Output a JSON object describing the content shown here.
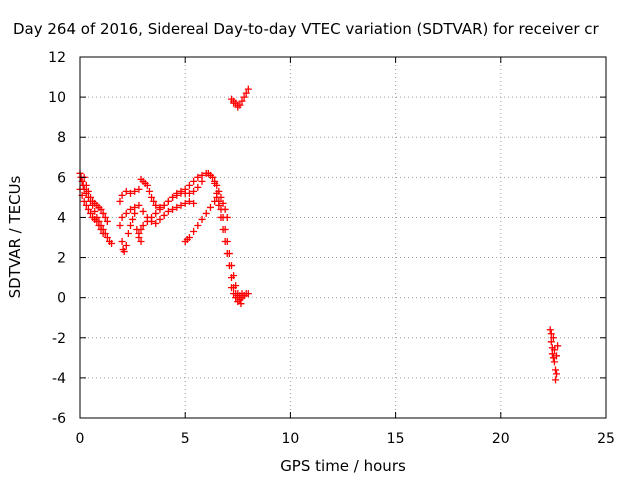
{
  "chart_data": {
    "type": "scatter",
    "title": "Day 264 of 2016, Sidereal Day-to-day VTEC variation (SDTVAR) for receiver cr",
    "xlabel": "GPS time / hours",
    "ylabel": "SDTVAR / TECUs",
    "xlim": [
      0,
      25
    ],
    "ylim": [
      -6,
      12
    ],
    "xticks": [
      0,
      5,
      10,
      15,
      20,
      25
    ],
    "yticks": [
      -6,
      -4,
      -2,
      0,
      2,
      4,
      6,
      8,
      10,
      12
    ],
    "grid": true,
    "marker": "plus",
    "color": "#ff0000",
    "series": [
      {
        "points": [
          [
            0.0,
            6.2
          ],
          [
            0.05,
            6.0
          ],
          [
            0.1,
            5.8
          ],
          [
            0.15,
            5.6
          ],
          [
            0.2,
            5.4
          ],
          [
            0.3,
            5.2
          ],
          [
            0.4,
            5.0
          ],
          [
            0.5,
            4.8
          ],
          [
            0.6,
            4.6
          ],
          [
            0.7,
            4.3
          ],
          [
            0.8,
            4.0
          ],
          [
            0.9,
            3.8
          ],
          [
            1.0,
            3.6
          ],
          [
            1.1,
            3.4
          ],
          [
            1.2,
            3.2
          ],
          [
            1.3,
            3.0
          ],
          [
            1.4,
            2.8
          ],
          [
            1.5,
            2.7
          ],
          [
            0.0,
            5.4
          ],
          [
            0.1,
            5.1
          ],
          [
            0.2,
            4.8
          ],
          [
            0.3,
            4.6
          ],
          [
            0.4,
            4.4
          ],
          [
            0.5,
            4.2
          ],
          [
            0.6,
            4.0
          ],
          [
            0.7,
            3.9
          ],
          [
            0.8,
            3.8
          ],
          [
            0.9,
            3.6
          ],
          [
            1.0,
            3.4
          ],
          [
            1.1,
            3.2
          ],
          [
            0.2,
            6.0
          ],
          [
            0.3,
            5.6
          ],
          [
            0.4,
            5.3
          ],
          [
            0.5,
            5.0
          ],
          [
            0.6,
            4.8
          ],
          [
            0.7,
            4.7
          ],
          [
            0.8,
            4.6
          ],
          [
            0.9,
            4.5
          ],
          [
            1.0,
            4.4
          ],
          [
            1.1,
            4.2
          ],
          [
            1.2,
            4.0
          ],
          [
            1.3,
            3.8
          ],
          [
            1.9,
            3.6
          ],
          [
            2.0,
            2.8
          ],
          [
            2.05,
            2.4
          ],
          [
            2.1,
            2.3
          ],
          [
            2.2,
            2.6
          ],
          [
            2.3,
            3.2
          ],
          [
            2.4,
            3.6
          ],
          [
            2.5,
            3.9
          ],
          [
            2.6,
            4.2
          ],
          [
            1.9,
            4.8
          ],
          [
            2.0,
            5.1
          ],
          [
            2.2,
            5.3
          ],
          [
            2.4,
            5.2
          ],
          [
            2.6,
            5.3
          ],
          [
            2.8,
            5.4
          ],
          [
            2.0,
            4.0
          ],
          [
            2.2,
            4.2
          ],
          [
            2.4,
            4.4
          ],
          [
            2.6,
            4.5
          ],
          [
            2.8,
            4.6
          ],
          [
            3.0,
            4.3
          ],
          [
            3.2,
            4.0
          ],
          [
            3.4,
            3.8
          ],
          [
            3.6,
            3.7
          ],
          [
            3.8,
            3.9
          ],
          [
            4.0,
            4.1
          ],
          [
            4.2,
            4.3
          ],
          [
            4.4,
            4.4
          ],
          [
            4.6,
            4.5
          ],
          [
            4.8,
            4.6
          ],
          [
            5.0,
            4.7
          ],
          [
            5.2,
            4.8
          ],
          [
            5.4,
            4.7
          ],
          [
            2.8,
            3.2
          ],
          [
            2.9,
            3.4
          ],
          [
            3.0,
            3.6
          ],
          [
            3.2,
            3.8
          ],
          [
            3.4,
            4.0
          ],
          [
            3.6,
            4.2
          ],
          [
            3.8,
            4.4
          ],
          [
            4.0,
            4.6
          ],
          [
            4.2,
            4.8
          ],
          [
            4.4,
            5.0
          ],
          [
            4.6,
            5.1
          ],
          [
            4.8,
            5.2
          ],
          [
            5.0,
            5.2
          ],
          [
            5.2,
            5.2
          ],
          [
            5.4,
            5.3
          ],
          [
            5.6,
            5.5
          ],
          [
            5.8,
            5.8
          ],
          [
            2.7,
            3.4
          ],
          [
            2.8,
            3.0
          ],
          [
            2.9,
            2.8
          ],
          [
            2.9,
            5.9
          ],
          [
            3.0,
            5.8
          ],
          [
            3.1,
            5.7
          ],
          [
            3.2,
            5.6
          ],
          [
            3.3,
            5.3
          ],
          [
            3.4,
            5.0
          ],
          [
            3.5,
            4.8
          ],
          [
            3.6,
            4.6
          ],
          [
            3.8,
            4.5
          ],
          [
            4.0,
            4.6
          ],
          [
            4.2,
            4.8
          ],
          [
            4.4,
            5.0
          ],
          [
            4.6,
            5.2
          ],
          [
            4.8,
            5.3
          ],
          [
            5.0,
            5.4
          ],
          [
            5.2,
            5.6
          ],
          [
            5.4,
            5.8
          ],
          [
            5.6,
            6.0
          ],
          [
            5.8,
            6.1
          ],
          [
            6.0,
            6.2
          ],
          [
            6.1,
            6.2
          ],
          [
            6.2,
            6.1
          ],
          [
            6.3,
            6.0
          ],
          [
            6.4,
            5.8
          ],
          [
            6.5,
            5.6
          ],
          [
            6.6,
            5.3
          ],
          [
            6.7,
            5.0
          ],
          [
            6.8,
            4.7
          ],
          [
            6.9,
            4.4
          ],
          [
            7.0,
            4.0
          ],
          [
            5.0,
            2.8
          ],
          [
            5.1,
            2.9
          ],
          [
            5.2,
            3.0
          ],
          [
            5.4,
            3.3
          ],
          [
            5.6,
            3.6
          ],
          [
            5.8,
            3.9
          ],
          [
            6.0,
            4.2
          ],
          [
            6.2,
            4.5
          ],
          [
            6.4,
            4.8
          ],
          [
            6.5,
            5.0
          ],
          [
            6.6,
            4.8
          ],
          [
            6.7,
            4.4
          ],
          [
            6.8,
            4.0
          ],
          [
            6.9,
            3.4
          ],
          [
            7.0,
            2.8
          ],
          [
            7.1,
            2.2
          ],
          [
            7.2,
            1.6
          ],
          [
            7.3,
            1.1
          ],
          [
            7.4,
            0.6
          ],
          [
            7.5,
            0.2
          ],
          [
            7.6,
            -0.1
          ],
          [
            7.65,
            -0.3
          ],
          [
            6.4,
            5.7
          ],
          [
            6.5,
            5.2
          ],
          [
            6.6,
            4.6
          ],
          [
            6.7,
            4.0
          ],
          [
            6.8,
            3.4
          ],
          [
            6.9,
            2.8
          ],
          [
            7.0,
            2.2
          ],
          [
            7.1,
            1.6
          ],
          [
            7.2,
            1.0
          ],
          [
            7.3,
            0.5
          ],
          [
            7.4,
            0.2
          ],
          [
            7.5,
            0.1
          ],
          [
            7.6,
            0.0
          ],
          [
            7.7,
            0.0
          ],
          [
            7.8,
            0.1
          ],
          [
            7.9,
            0.2
          ],
          [
            8.0,
            0.2
          ],
          [
            7.2,
            0.5
          ],
          [
            7.3,
            0.2
          ],
          [
            7.4,
            0.0
          ],
          [
            7.5,
            -0.2
          ],
          [
            7.6,
            0.1
          ],
          [
            7.7,
            0.2
          ],
          [
            7.8,
            0.1
          ],
          [
            7.2,
            9.9
          ],
          [
            7.3,
            9.8
          ],
          [
            7.4,
            9.7
          ],
          [
            7.5,
            9.6
          ],
          [
            7.6,
            9.6
          ],
          [
            7.7,
            9.8
          ],
          [
            7.8,
            10.0
          ],
          [
            7.9,
            10.2
          ],
          [
            8.0,
            10.4
          ],
          [
            7.3,
            9.7
          ],
          [
            7.5,
            9.5
          ],
          [
            22.35,
            -1.6
          ],
          [
            22.4,
            -1.8
          ],
          [
            22.4,
            -2.2
          ],
          [
            22.45,
            -2.5
          ],
          [
            22.45,
            -2.8
          ],
          [
            22.5,
            -3.0
          ],
          [
            22.55,
            -2.6
          ],
          [
            22.55,
            -3.2
          ],
          [
            22.6,
            -3.6
          ],
          [
            22.6,
            -4.1
          ],
          [
            22.65,
            -3.8
          ],
          [
            22.65,
            -2.9
          ],
          [
            22.7,
            -2.4
          ],
          [
            22.5,
            -2.0
          ]
        ]
      }
    ]
  }
}
